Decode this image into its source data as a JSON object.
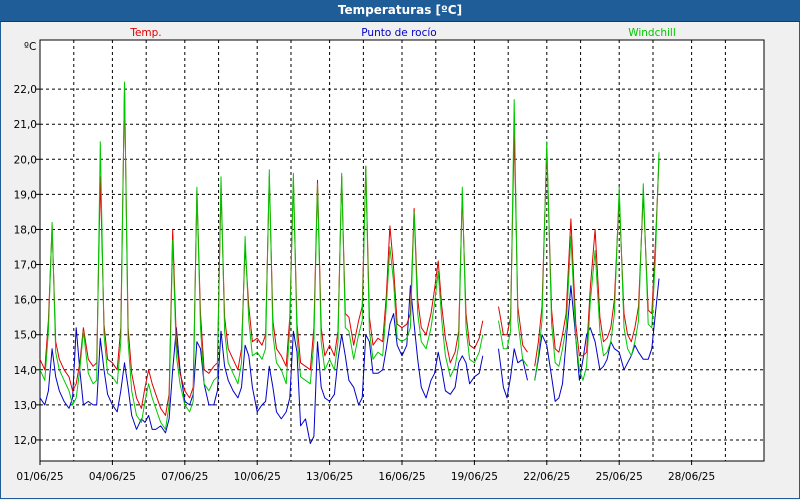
{
  "window": {
    "title": "Temperaturas [ºC]"
  },
  "chart_data": {
    "type": "line",
    "title": "Temperaturas [ºC]",
    "ylabel": "ºC",
    "xlabel": "",
    "ylim": [
      11.4,
      23.4
    ],
    "xlim": [
      0,
      30
    ],
    "grid": true,
    "yticks": [
      12.0,
      13.0,
      14.0,
      15.0,
      16.0,
      17.0,
      18.0,
      19.0,
      20.0,
      21.0,
      22.0
    ],
    "ytick_labels": [
      "12,0",
      "13,0",
      "14,0",
      "15,0",
      "16,0",
      "17,0",
      "18,0",
      "19,0",
      "20,0",
      "21,0",
      "22,0"
    ],
    "xticks": [
      0,
      3,
      6,
      9,
      12,
      15,
      18,
      21,
      24,
      27
    ],
    "xtick_labels": [
      "01/06/25",
      "04/06/25",
      "07/06/25",
      "10/06/25",
      "13/06/25",
      "16/06/25",
      "19/06/25",
      "22/06/25",
      "25/06/25",
      "28/06/25"
    ],
    "x_vgrid": [
      0,
      1.4,
      3.0,
      4.4,
      6.0,
      7.4,
      9.0,
      10.4,
      12.0,
      13.4,
      15.0,
      16.4,
      18.0,
      19.4,
      21.0,
      22.4,
      24.0,
      25.4,
      27.0,
      28.4
    ],
    "series": [
      {
        "name": "Temp.",
        "color": "#e00000",
        "width": 1,
        "x": [
          0.0,
          0.2,
          0.35,
          0.5,
          0.65,
          0.8,
          1.0,
          1.2,
          1.35,
          1.5,
          1.65,
          1.8,
          2.0,
          2.2,
          2.35,
          2.5,
          2.65,
          2.8,
          3.0,
          3.2,
          3.35,
          3.5,
          3.65,
          3.8,
          4.0,
          4.2,
          4.35,
          4.5,
          4.65,
          4.8,
          5.0,
          5.2,
          5.35,
          5.5,
          5.65,
          5.8,
          6.0,
          6.2,
          6.35,
          6.5,
          6.65,
          6.8,
          7.0,
          7.2,
          7.35,
          7.5,
          7.65,
          7.8,
          8.0,
          8.2,
          8.35,
          8.5,
          8.65,
          8.8,
          9.0,
          9.2,
          9.35,
          9.5,
          9.65,
          9.8,
          10.0,
          10.2,
          10.35,
          10.5,
          10.65,
          10.8,
          11.0,
          11.2,
          11.35,
          11.5,
          11.65,
          11.8,
          12.0,
          12.2,
          12.35,
          12.5,
          12.65,
          12.8,
          13.0,
          13.2,
          13.35,
          13.5,
          13.65,
          13.8,
          14.0,
          14.2,
          14.35,
          14.5,
          14.65,
          14.8,
          15.0,
          15.2,
          15.35,
          15.5,
          15.65,
          15.8,
          16.0,
          16.2,
          16.35,
          16.5,
          16.65,
          16.8,
          17.0,
          17.2,
          17.35,
          17.5,
          17.65,
          17.8,
          18.0,
          18.2,
          18.35,
          null,
          19.0,
          19.2,
          19.35,
          19.5,
          19.65,
          19.8,
          20.0,
          20.2,
          20.35,
          20.5,
          20.65,
          20.8,
          21.0,
          21.2,
          21.35,
          21.5,
          21.65,
          21.8,
          22.0,
          22.2,
          22.35,
          22.5,
          22.65,
          22.8,
          23.0,
          23.2,
          23.35,
          23.5,
          23.65,
          23.8,
          24.0,
          24.2,
          24.35,
          24.5,
          24.65,
          24.8,
          25.0,
          25.2,
          25.35,
          25.5,
          25.65
        ],
        "y": [
          14.3,
          14.0,
          15.4,
          18.1,
          14.8,
          14.3,
          14.0,
          13.8,
          13.4,
          13.6,
          14.2,
          15.2,
          14.3,
          14.1,
          14.2,
          19.5,
          15.3,
          14.3,
          14.2,
          14.0,
          15.2,
          22.1,
          15.2,
          13.9,
          13.2,
          12.9,
          13.5,
          14.0,
          13.6,
          13.3,
          12.9,
          12.7,
          13.3,
          18.0,
          14.8,
          13.9,
          13.4,
          13.2,
          13.5,
          19.1,
          15.6,
          14.0,
          13.9,
          14.1,
          14.2,
          19.2,
          15.5,
          14.6,
          14.3,
          14.0,
          14.6,
          17.5,
          15.8,
          14.8,
          14.9,
          14.7,
          15.0,
          19.5,
          15.4,
          14.6,
          14.4,
          14.1,
          15.5,
          19.4,
          15.3,
          14.2,
          14.1,
          14.0,
          15.2,
          19.4,
          15.2,
          14.4,
          14.7,
          14.4,
          15.1,
          19.5,
          15.6,
          15.5,
          14.7,
          15.4,
          15.8,
          19.8,
          15.5,
          14.7,
          14.9,
          14.8,
          16.1,
          18.1,
          16.9,
          15.3,
          15.2,
          15.3,
          15.6,
          18.6,
          16.0,
          15.2,
          15.0,
          15.6,
          16.3,
          17.1,
          15.8,
          14.9,
          14.2,
          14.5,
          15.1,
          19.0,
          15.6,
          14.7,
          14.6,
          14.9,
          15.4,
          21.2,
          15.8,
          15.0,
          15.0,
          15.5,
          20.8,
          15.8,
          14.7,
          14.5,
          null,
          14.1,
          14.8,
          15.8,
          20.3,
          15.7,
          14.6,
          14.5,
          15.0,
          15.6,
          18.3,
          15.3,
          14.4,
          14.4,
          14.5,
          16.3,
          18.0,
          15.5,
          14.8,
          14.9,
          15.2,
          16.0,
          18.9,
          15.6,
          15.0,
          14.8,
          15.2,
          15.8,
          19.0,
          15.7,
          15.6,
          17.6,
          20.0
        ]
      },
      {
        "name": "Punto de rocío",
        "color": "#0000c8",
        "width": 1,
        "x": [
          0.0,
          0.2,
          0.35,
          0.5,
          0.65,
          0.8,
          1.0,
          1.2,
          1.35,
          1.5,
          1.65,
          1.8,
          2.0,
          2.2,
          2.35,
          2.5,
          2.65,
          2.8,
          3.0,
          3.2,
          3.35,
          3.5,
          3.65,
          3.8,
          4.0,
          4.2,
          4.35,
          4.5,
          4.65,
          4.8,
          5.0,
          5.2,
          5.35,
          5.5,
          5.65,
          5.8,
          6.0,
          6.2,
          6.35,
          6.5,
          6.65,
          6.8,
          7.0,
          7.2,
          7.35,
          7.5,
          7.65,
          7.8,
          8.0,
          8.2,
          8.35,
          8.5,
          8.65,
          8.8,
          9.0,
          9.2,
          9.35,
          9.5,
          9.65,
          9.8,
          10.0,
          10.2,
          10.35,
          10.5,
          10.65,
          10.8,
          11.0,
          11.2,
          11.35,
          11.5,
          11.65,
          11.8,
          12.0,
          12.2,
          12.35,
          12.5,
          12.65,
          12.8,
          13.0,
          13.2,
          13.35,
          13.5,
          13.65,
          13.8,
          14.0,
          14.2,
          14.35,
          14.5,
          14.65,
          14.8,
          15.0,
          15.2,
          15.35,
          15.5,
          15.65,
          15.8,
          16.0,
          16.2,
          16.35,
          16.5,
          16.65,
          16.8,
          17.0,
          17.2,
          17.35,
          17.5,
          17.65,
          17.8,
          18.0,
          18.2,
          18.35,
          null,
          19.0,
          19.2,
          19.35,
          19.5,
          19.65,
          19.8,
          20.0,
          20.2,
          20.35,
          20.5,
          20.65,
          20.8,
          21.0,
          21.2,
          21.35,
          21.5,
          21.65,
          21.8,
          22.0,
          22.2,
          22.35,
          22.5,
          22.65,
          22.8,
          23.0,
          23.2,
          23.35,
          23.5,
          23.65,
          23.8,
          24.0,
          24.2,
          24.35,
          24.5,
          24.65,
          24.8,
          25.0,
          25.2,
          25.35,
          25.5,
          25.65
        ],
        "y": [
          13.2,
          13.0,
          13.4,
          14.6,
          13.8,
          13.4,
          13.1,
          12.9,
          13.2,
          15.2,
          14.0,
          13.0,
          13.1,
          13.0,
          13.0,
          14.9,
          14.0,
          13.3,
          13.0,
          12.8,
          13.4,
          14.2,
          13.5,
          12.7,
          12.3,
          12.6,
          12.5,
          12.7,
          12.3,
          12.3,
          12.4,
          12.2,
          12.6,
          14.0,
          15.2,
          14.0,
          13.1,
          13.0,
          13.3,
          14.8,
          14.6,
          13.6,
          13.0,
          13.0,
          13.4,
          15.1,
          14.1,
          13.7,
          13.4,
          13.2,
          13.5,
          14.7,
          14.4,
          13.5,
          12.8,
          13.0,
          13.1,
          14.1,
          13.5,
          12.8,
          12.6,
          12.8,
          13.2,
          15.1,
          14.5,
          12.4,
          12.6,
          11.9,
          12.1,
          14.8,
          13.5,
          13.2,
          13.1,
          13.3,
          14.3,
          15.0,
          14.4,
          13.7,
          13.5,
          13.0,
          13.2,
          15.0,
          14.8,
          13.9,
          13.9,
          14.0,
          14.6,
          15.3,
          15.6,
          14.7,
          14.4,
          14.7,
          16.4,
          15.3,
          14.3,
          13.5,
          13.2,
          13.7,
          13.9,
          14.5,
          14.0,
          13.4,
          13.3,
          13.5,
          14.2,
          14.4,
          14.2,
          13.6,
          13.8,
          13.9,
          14.4,
          14.9,
          14.6,
          13.5,
          13.2,
          13.8,
          14.6,
          14.2,
          14.3,
          13.7,
          null,
          13.7,
          14.3,
          15.0,
          14.7,
          13.8,
          13.1,
          13.2,
          13.6,
          14.8,
          16.4,
          14.9,
          13.7,
          14.3,
          15.0,
          15.2,
          14.8,
          14.0,
          14.1,
          14.3,
          14.8,
          14.6,
          14.5,
          14.0,
          14.2,
          14.4,
          14.7,
          14.5,
          14.3,
          14.3,
          14.6,
          15.6,
          16.6
        ]
      },
      {
        "name": "Windchill",
        "color": "#00c800",
        "width": 1,
        "x": [
          0.0,
          0.2,
          0.35,
          0.5,
          0.65,
          0.8,
          1.0,
          1.2,
          1.35,
          1.5,
          1.65,
          1.8,
          2.0,
          2.2,
          2.35,
          2.5,
          2.65,
          2.8,
          3.0,
          3.2,
          3.35,
          3.5,
          3.65,
          3.8,
          4.0,
          4.2,
          4.35,
          4.5,
          4.65,
          4.8,
          5.0,
          5.2,
          5.35,
          5.5,
          5.65,
          5.8,
          6.0,
          6.2,
          6.35,
          6.5,
          6.65,
          6.8,
          7.0,
          7.2,
          7.35,
          7.5,
          7.65,
          7.8,
          8.0,
          8.2,
          8.35,
          8.5,
          8.65,
          8.8,
          9.0,
          9.2,
          9.35,
          9.5,
          9.65,
          9.8,
          10.0,
          10.2,
          10.35,
          10.5,
          10.65,
          10.8,
          11.0,
          11.2,
          11.35,
          11.5,
          11.65,
          11.8,
          12.0,
          12.2,
          12.35,
          12.5,
          12.65,
          12.8,
          13.0,
          13.2,
          13.35,
          13.5,
          13.65,
          13.8,
          14.0,
          14.2,
          14.35,
          14.5,
          14.65,
          14.8,
          15.0,
          15.2,
          15.35,
          15.5,
          15.65,
          15.8,
          16.0,
          16.2,
          16.35,
          16.5,
          16.65,
          16.8,
          17.0,
          17.2,
          17.35,
          17.5,
          17.65,
          17.8,
          18.0,
          18.2,
          18.35,
          null,
          19.0,
          19.2,
          19.35,
          19.5,
          19.65,
          19.8,
          20.0,
          20.2,
          20.35,
          20.5,
          20.65,
          20.8,
          21.0,
          21.2,
          21.35,
          21.5,
          21.65,
          21.8,
          22.0,
          22.2,
          22.35,
          22.5,
          22.65,
          22.8,
          23.0,
          23.2,
          23.35,
          23.5,
          23.65,
          23.8,
          24.0,
          24.2,
          24.35,
          24.5,
          24.65,
          24.8,
          25.0,
          25.2,
          25.35,
          25.5,
          25.65
        ],
        "y": [
          14.0,
          13.7,
          15.1,
          18.2,
          14.5,
          14.0,
          13.7,
          13.4,
          13.0,
          13.2,
          14.0,
          15.1,
          13.9,
          13.6,
          13.7,
          20.5,
          15.0,
          13.9,
          13.8,
          13.6,
          14.8,
          22.2,
          14.8,
          13.4,
          12.7,
          12.5,
          13.1,
          13.6,
          13.2,
          12.9,
          12.5,
          12.3,
          13.0,
          17.7,
          14.4,
          13.6,
          13.0,
          12.8,
          13.1,
          19.2,
          15.2,
          13.6,
          13.4,
          13.7,
          13.8,
          19.5,
          15.1,
          14.2,
          13.9,
          13.6,
          14.2,
          17.8,
          15.4,
          14.4,
          14.5,
          14.3,
          14.6,
          19.7,
          15.0,
          14.2,
          14.0,
          13.6,
          15.2,
          19.6,
          14.9,
          13.8,
          13.7,
          13.6,
          14.8,
          19.3,
          14.8,
          14.0,
          14.3,
          14.0,
          14.8,
          19.6,
          15.2,
          15.1,
          14.3,
          15.0,
          15.4,
          19.8,
          15.1,
          14.3,
          14.5,
          14.4,
          15.8,
          17.5,
          16.5,
          14.9,
          14.8,
          14.9,
          15.2,
          18.5,
          15.6,
          14.8,
          14.6,
          15.2,
          15.9,
          16.8,
          15.4,
          14.4,
          13.8,
          14.1,
          14.7,
          19.2,
          15.2,
          14.3,
          14.2,
          14.5,
          15.0,
          21.6,
          15.4,
          14.6,
          14.6,
          15.1,
          21.7,
          15.4,
          14.3,
          14.1,
          null,
          13.7,
          14.4,
          15.4,
          20.5,
          15.3,
          14.2,
          14.1,
          14.6,
          15.2,
          17.8,
          14.9,
          14.0,
          13.7,
          14.1,
          15.9,
          17.4,
          15.1,
          14.4,
          14.5,
          14.8,
          15.6,
          19.2,
          15.2,
          14.6,
          14.4,
          14.8,
          15.4,
          19.3,
          15.3,
          15.2,
          17.2,
          20.2
        ]
      }
    ]
  }
}
